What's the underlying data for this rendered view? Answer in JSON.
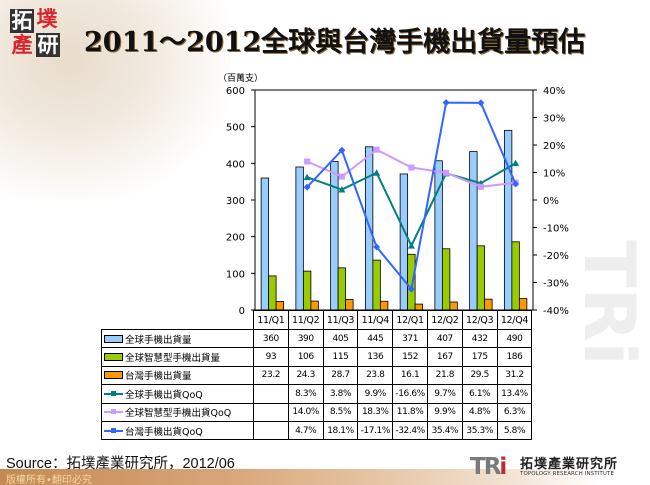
{
  "header": {
    "logo_chars": [
      "拓",
      "墣",
      "產",
      "研"
    ],
    "title": "2011～2012全球與台灣手機出貨量預估"
  },
  "chart_data": {
    "type": "bar+line",
    "title": "2011～2012全球與台灣手機出貨量預估",
    "unit_label": "（百萬支）",
    "categories": [
      "11/Q1",
      "11/Q2",
      "11/Q3",
      "11/Q4",
      "12/Q1",
      "12/Q2",
      "12/Q3",
      "12/Q4"
    ],
    "left_axis": {
      "min": 0,
      "max": 600,
      "ticks": [
        "0",
        "100",
        "200",
        "300",
        "400",
        "500",
        "600"
      ]
    },
    "right_axis": {
      "min": -40,
      "max": 40,
      "ticks": [
        "-40%",
        "-30%",
        "-20%",
        "-10%",
        "0%",
        "10%",
        "20%",
        "30%",
        "40%"
      ]
    },
    "bar_series": [
      {
        "name": "全球手機出貨量",
        "color": "#99ccff",
        "values": [
          "360",
          "390",
          "405",
          "445",
          "371",
          "407",
          "432",
          "490"
        ]
      },
      {
        "name": "全球智慧型手機出貨量",
        "color": "#99cc00",
        "values": [
          "93",
          "106",
          "115",
          "136",
          "152",
          "167",
          "175",
          "186"
        ]
      },
      {
        "name": "台灣手機出貨量",
        "color": "#ff9900",
        "values": [
          "23.2",
          "24.3",
          "28.7",
          "23.8",
          "16.1",
          "21.8",
          "29.5",
          "31.2"
        ]
      }
    ],
    "line_series": [
      {
        "name": "全球手機出貨QoQ",
        "color": "#008080",
        "marker": "triangle",
        "values": [
          "",
          "8.3%",
          "3.8%",
          "9.9%",
          "-16.6%",
          "9.7%",
          "6.1%",
          "13.4%"
        ]
      },
      {
        "name": "全球智慧型手機出貨QoQ",
        "color": "#cc99ff",
        "marker": "square",
        "values": [
          "",
          "14.0%",
          "8.5%",
          "18.3%",
          "11.8%",
          "9.9%",
          "4.8%",
          "6.3%"
        ]
      },
      {
        "name": "台灣手機出貨QoQ",
        "color": "#3366ff",
        "marker": "diamond",
        "values": [
          "",
          "4.7%",
          "18.1%",
          "-17.1%",
          "-32.4%",
          "35.4%",
          "35.3%",
          "5.8%"
        ]
      }
    ],
    "grid": false,
    "legend_position": "data-table-left"
  },
  "footer": {
    "source": "Source：拓墣產業研究所，2012/06",
    "copyright": "版權所有•翻印必究",
    "org_logo_mark": "TRi",
    "org_name_zh": "拓墣產業研究所",
    "org_name_en": "TOPOLOGY RESEARCH INSTITUTE"
  }
}
